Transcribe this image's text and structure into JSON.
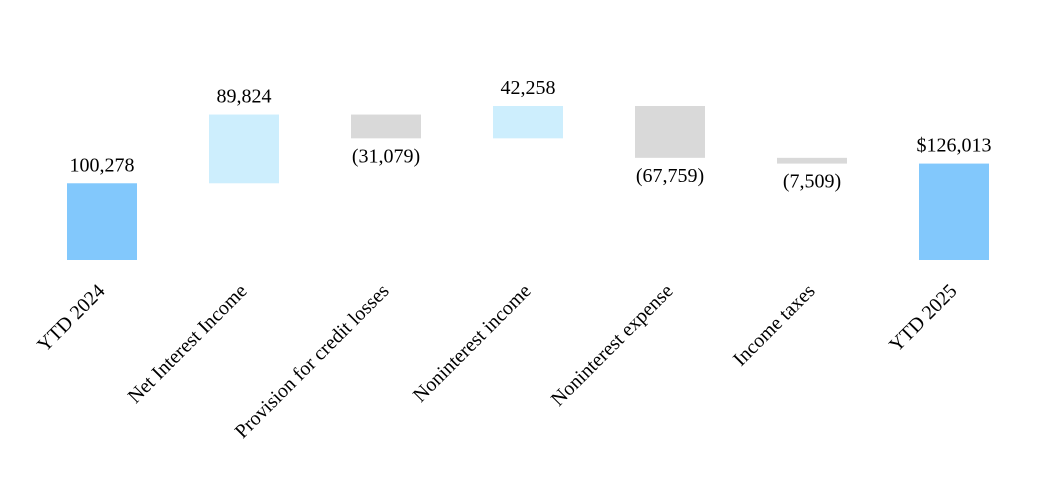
{
  "chart_data": {
    "type": "waterfall",
    "categories": [
      "YTD 2024",
      "Net Interest Income",
      "Provision for credit losses",
      "Noninterest income",
      "Noninterest expense",
      "Income taxes",
      "YTD 2025"
    ],
    "values": [
      100278,
      89824,
      -31079,
      42258,
      -67759,
      -7509,
      126013
    ],
    "value_labels": [
      "100,278",
      "89,824",
      "(31,079)",
      "42,258",
      "(67,759)",
      "(7,509)",
      "$126,013"
    ],
    "colors": [
      "#82c8fc",
      "#cdeefd",
      "#d9d9d9",
      "#cdeefd",
      "#d9d9d9",
      "#d9d9d9",
      "#82c8fc"
    ]
  }
}
